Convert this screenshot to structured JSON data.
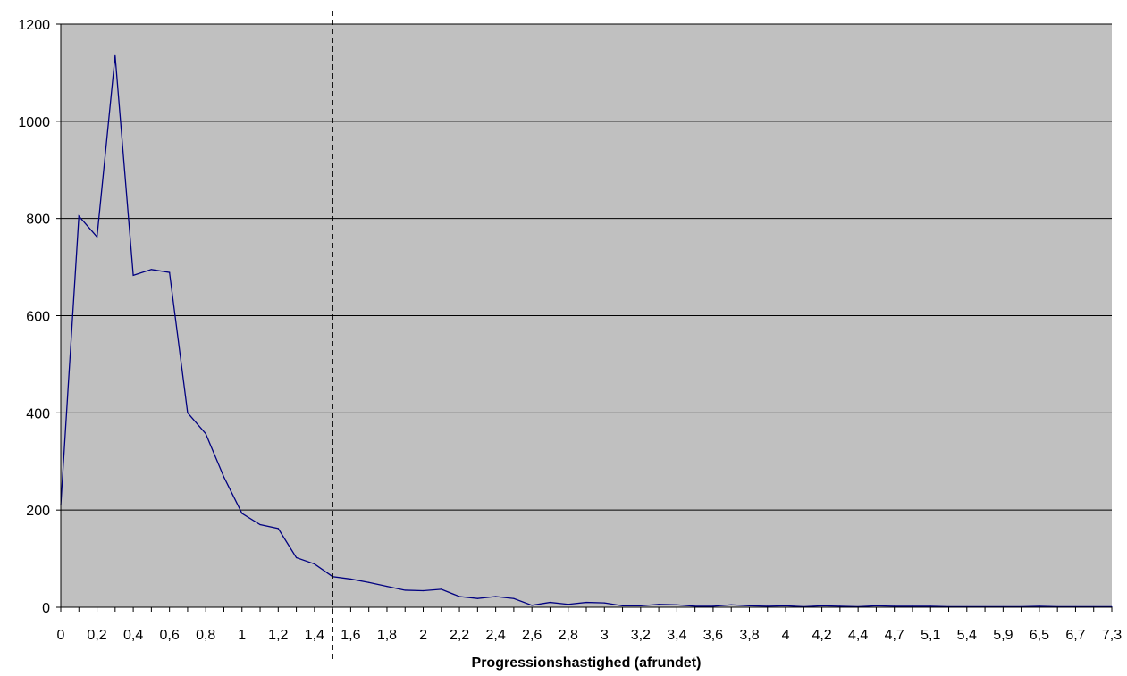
{
  "chart_data": {
    "type": "line",
    "title": "",
    "xlabel": "Progressionshastighed (afrundet)",
    "ylabel": "",
    "ylim": [
      0,
      1200
    ],
    "y_ticks": [
      0,
      200,
      400,
      600,
      800,
      1000,
      1200
    ],
    "grid": true,
    "legend": "none",
    "plot_background": "#C0C0C0",
    "line_color": "#000080",
    "gridline_color": "#000000",
    "categories": [
      "0",
      "0,1",
      "0,2",
      "0,3",
      "0,4",
      "0,5",
      "0,6",
      "0,7",
      "0,8",
      "0,9",
      "1",
      "1,1",
      "1,2",
      "1,3",
      "1,4",
      "1,5",
      "1,6",
      "1,7",
      "1,8",
      "1,9",
      "2",
      "2,1",
      "2,2",
      "2,3",
      "2,4",
      "2,5",
      "2,6",
      "2,7",
      "2,8",
      "2,9",
      "3",
      "3,1",
      "3,2",
      "3,3",
      "3,4",
      "3,5",
      "3,6",
      "3,7",
      "3,8",
      "3,9",
      "4",
      "4,1",
      "4,2",
      "4,3",
      "4,4",
      "4,6",
      "4,7",
      "4,9",
      "5,1",
      "5,2",
      "5,4",
      "5,6",
      "5,9",
      "6,2",
      "6,5",
      "6,6",
      "6,7",
      "7",
      "7,3"
    ],
    "tick_labels": [
      "0",
      "0,2",
      "0,4",
      "0,6",
      "0,8",
      "1",
      "1,2",
      "1,4",
      "1,6",
      "1,8",
      "2",
      "2,2",
      "2,4",
      "2,6",
      "2,8",
      "3",
      "3,2",
      "3,4",
      "3,6",
      "3,8",
      "4",
      "4,2",
      "4,4",
      "4,7",
      "5,1",
      "5,4",
      "5,9",
      "6,5",
      "6,7",
      "7,3"
    ],
    "series": [
      {
        "values": [
          210,
          805,
          762,
          1135,
          683,
          695,
          689,
          400,
          357,
          268,
          193,
          170,
          162,
          102,
          89,
          63,
          58,
          51,
          43,
          35,
          34,
          37,
          22,
          18,
          22,
          18,
          4,
          10,
          6,
          10,
          9,
          3,
          3,
          6,
          5,
          2,
          2,
          5,
          3,
          2,
          3,
          1,
          3,
          2,
          1,
          3,
          2,
          2,
          2,
          1,
          1,
          1,
          1,
          1,
          2,
          1,
          1,
          1,
          1
        ]
      }
    ],
    "reference_line": {
      "x": 1.5,
      "style": "dashed"
    }
  }
}
